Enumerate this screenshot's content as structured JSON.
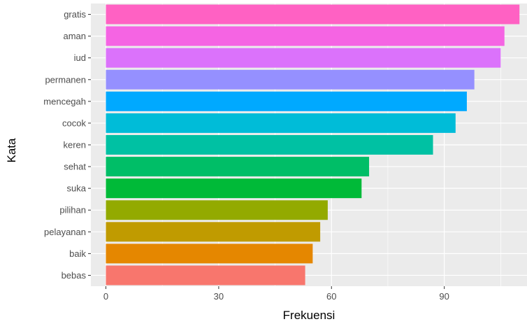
{
  "chart_data": {
    "type": "bar",
    "orientation": "horizontal",
    "xlabel": "Frekuensi",
    "ylabel": "Kata",
    "xlim": [
      -4,
      112
    ],
    "x_ticks": [
      0,
      30,
      60,
      90
    ],
    "grid": true,
    "legend": "none",
    "panel_background": "#ebebeb",
    "grid_color": "#ffffff",
    "bars": [
      {
        "label": "gratis",
        "value": 110,
        "color": "#FF61C3"
      },
      {
        "label": "aman",
        "value": 106,
        "color": "#F564E3"
      },
      {
        "label": "iud",
        "value": 105,
        "color": "#DB72FB"
      },
      {
        "label": "permanen",
        "value": 98,
        "color": "#9590FF"
      },
      {
        "label": "mencegah",
        "value": 96,
        "color": "#00A9FF"
      },
      {
        "label": "cocok",
        "value": 93,
        "color": "#00BCD8"
      },
      {
        "label": "keren",
        "value": 87,
        "color": "#00C1A3"
      },
      {
        "label": "sehat",
        "value": 70,
        "color": "#00BE67"
      },
      {
        "label": "suka",
        "value": 68,
        "color": "#00BA38"
      },
      {
        "label": "pilihan",
        "value": 59,
        "color": "#93AA00"
      },
      {
        "label": "pelayanan",
        "value": 57,
        "color": "#C09B00"
      },
      {
        "label": "baik",
        "value": 55,
        "color": "#E58700"
      },
      {
        "label": "bebas",
        "value": 53,
        "color": "#F8766D"
      }
    ]
  }
}
